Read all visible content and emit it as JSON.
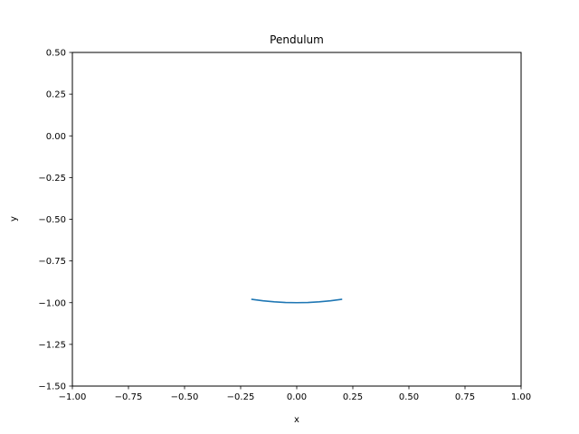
{
  "chart_data": {
    "type": "line",
    "title": "Pendulum",
    "xlabel": "x",
    "ylabel": "y",
    "xlim": [
      -1.0,
      1.0
    ],
    "ylim": [
      -1.5,
      0.5
    ],
    "xticks": [
      -1.0,
      -0.75,
      -0.5,
      -0.25,
      0.0,
      0.25,
      0.5,
      0.75,
      1.0
    ],
    "xtick_labels": [
      "−1.00",
      "−0.75",
      "−0.50",
      "−0.25",
      "0.00",
      "0.25",
      "0.50",
      "0.75",
      "1.00"
    ],
    "yticks": [
      0.5,
      0.25,
      0.0,
      -0.25,
      -0.5,
      -0.75,
      -1.0,
      -1.25,
      -1.5
    ],
    "ytick_labels": [
      "0.50",
      "0.25",
      "0.00",
      "−0.25",
      "−0.50",
      "−0.75",
      "−1.00",
      "−1.25",
      "−1.50"
    ],
    "grid": false,
    "legend": "none",
    "series": [
      {
        "color": "#1f77b4",
        "x": [
          -0.2,
          -0.15,
          -0.1,
          -0.05,
          0.0,
          0.05,
          0.1,
          0.15,
          0.2
        ],
        "y": [
          -0.98,
          -0.989,
          -0.995,
          -0.999,
          -1.0,
          -0.999,
          -0.995,
          -0.989,
          -0.98
        ]
      }
    ]
  }
}
